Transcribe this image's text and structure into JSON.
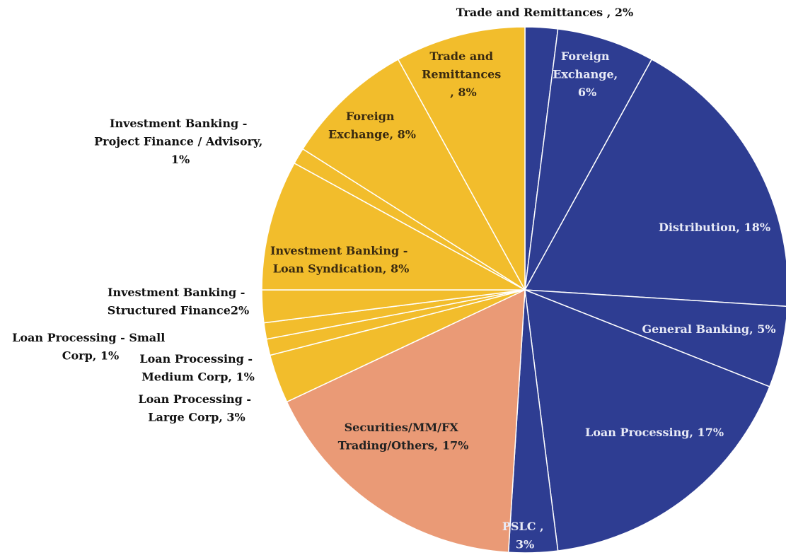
{
  "chart_data": {
    "type": "pie",
    "labels": [
      "Trade and Remittances , 2%",
      "Foreign Exchange, 6%",
      "Distribution, 18%",
      "General Banking, 5%",
      "Loan Processing, 17%",
      "PSLC , 3%",
      "Securities/MM/FX Trading/Others, 17%",
      "Loan Processing - Large Corp, 3%",
      "Loan Processing - Medium Corp, 1%",
      "Loan Processing - Small Corp, 1%",
      "Investment Banking - Structured Finance2%",
      "Investment Banking - Loan Syndication, 8%",
      "Investment Banking - Project Finance / Advisory, 1%",
      "Foreign Exchange, 8%",
      "Trade and Remittances , 8%"
    ],
    "values": [
      2,
      6,
      18,
      5,
      17,
      3,
      17,
      3,
      1,
      1,
      2,
      8,
      1,
      8,
      8
    ],
    "colors": [
      "#2e3d92",
      "#2e3d92",
      "#2e3d92",
      "#2e3d92",
      "#2e3d92",
      "#2e3d92",
      "#ea9a76",
      "#f2bd2c",
      "#f2bd2c",
      "#f2bd2c",
      "#f2bd2c",
      "#f2bd2c",
      "#f2bd2c",
      "#f2bd2c",
      "#f2bd2c"
    ]
  }
}
